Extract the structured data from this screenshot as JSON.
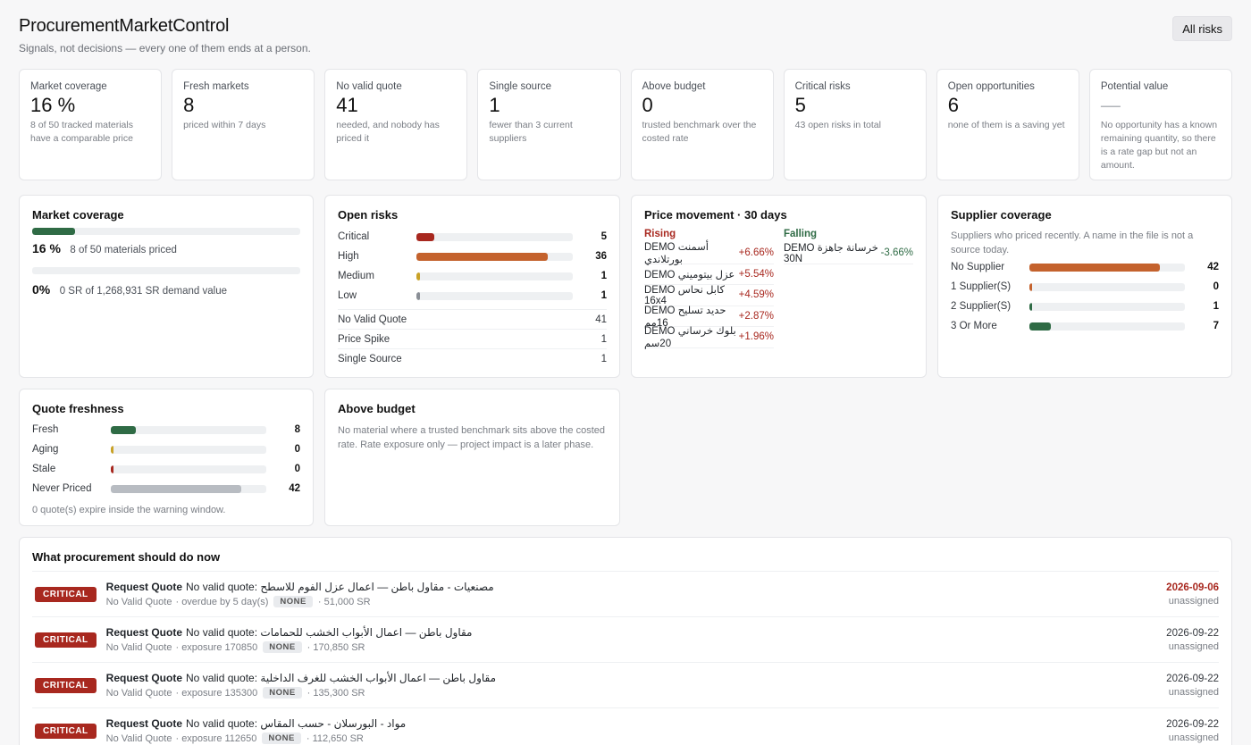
{
  "header": {
    "title": "ProcurementMarketControl",
    "subtitle": "Signals, not decisions — every one of them ends at a person.",
    "all_risks_label": "All risks"
  },
  "kpis": [
    {
      "label": "Market coverage",
      "value": "16 %",
      "sub": "8 of 50 tracked materials have a comparable price"
    },
    {
      "label": "Fresh markets",
      "value": "8",
      "sub": "priced within 7 days"
    },
    {
      "label": "No valid quote",
      "value": "41",
      "sub": "needed, and nobody has priced it"
    },
    {
      "label": "Single source",
      "value": "1",
      "sub": "fewer than 3 current suppliers"
    },
    {
      "label": "Above budget",
      "value": "0",
      "sub": "trusted benchmark over the costed rate"
    },
    {
      "label": "Critical risks",
      "value": "5",
      "sub": "43 open risks in total"
    },
    {
      "label": "Open opportunities",
      "value": "6",
      "sub": "none of them is a saving yet"
    },
    {
      "label": "Potential value",
      "value": "—",
      "sub": "No opportunity has a known remaining quantity, so there is a rate gap but not an amount."
    }
  ],
  "market_coverage": {
    "title": "Market coverage",
    "materials_pct_value": 0.16,
    "materials_pct": "16 %",
    "materials_sub": "8 of 50 materials priced",
    "demand_pct_value": 0.0,
    "demand_pct": "0%",
    "demand_sub": "0 SR of 1,268,931 SR demand value"
  },
  "open_risks": {
    "title": "Open risks",
    "severity": [
      {
        "label": "Critical",
        "value": 5,
        "display": "5",
        "color": "#a8281f"
      },
      {
        "label": "High",
        "value": 36,
        "display": "36",
        "color": "#c4622d"
      },
      {
        "label": "Medium",
        "value": 1,
        "display": "1",
        "color": "#c9a227"
      },
      {
        "label": "Low",
        "value": 1,
        "display": "1",
        "color": "#8a8f96"
      }
    ],
    "severity_max": 43,
    "types": [
      {
        "label": "No Valid Quote",
        "value": "41"
      },
      {
        "label": "Price Spike",
        "value": "1"
      },
      {
        "label": "Single Source",
        "value": "1"
      }
    ]
  },
  "price_movement": {
    "title": "Price movement · 30 days",
    "rising_label": "Rising",
    "falling_label": "Falling",
    "rising_color": "#a8281f",
    "falling_color": "#2f6b45",
    "rising": [
      {
        "name": "DEMO أسمنت بورتلاندي",
        "pct": "+6.66%"
      },
      {
        "name": "DEMO عزل بيتوميني",
        "pct": "+5.54%"
      },
      {
        "name": "DEMO كابل نحاس 16x4",
        "pct": "+4.59%"
      },
      {
        "name": "DEMO حديد تسليح 16مم",
        "pct": "+2.87%"
      },
      {
        "name": "DEMO بلوك خرساني 20سم",
        "pct": "+1.96%"
      }
    ],
    "falling": [
      {
        "name": "DEMO خرسانة جاهزة 30N",
        "pct": "-3.66%"
      }
    ]
  },
  "supplier_coverage": {
    "title": "Supplier coverage",
    "note": "Suppliers who priced recently. A name in the file is not a source today.",
    "rows": [
      {
        "label": "No Supplier",
        "value": 42,
        "display": "42",
        "color": "#c4622d"
      },
      {
        "label": "1 Supplier(S)",
        "value": 0,
        "display": "0",
        "color": "#c4622d"
      },
      {
        "label": "2 Supplier(S)",
        "value": 1,
        "display": "1",
        "color": "#2f6b45"
      },
      {
        "label": "3 Or More",
        "value": 7,
        "display": "7",
        "color": "#2f6b45"
      }
    ],
    "max": 50
  },
  "quote_freshness": {
    "title": "Quote freshness",
    "rows": [
      {
        "label": "Fresh",
        "value": 8,
        "display": "8",
        "color": "#2f6b45"
      },
      {
        "label": "Aging",
        "value": 0,
        "display": "0",
        "color": "#c9a227"
      },
      {
        "label": "Stale",
        "value": 0,
        "display": "0",
        "color": "#a8281f"
      },
      {
        "label": "Never Priced",
        "value": 42,
        "display": "42",
        "color": "#b8bcc2"
      }
    ],
    "max": 50,
    "note": "0 quote(s) expire inside the warning window."
  },
  "above_budget": {
    "title": "Above budget",
    "note": "No material where a trusted benchmark sits above the costed rate. Rate exposure only — project impact is a later phase."
  },
  "actions": {
    "title": "What procurement should do now",
    "items": [
      {
        "badge": "CRITICAL",
        "action": "Request Quote",
        "desc": "No valid quote: مصنعيات - مقاول باطن — اعمال عزل الفوم للاسطح",
        "type": "No Valid Quote",
        "detail": "· overdue by 5 day(s)",
        "chip": "NONE",
        "amount": "· 51,000 SR",
        "date": "2026-09-06",
        "overdue": true,
        "assignee": "unassigned"
      },
      {
        "badge": "CRITICAL",
        "action": "Request Quote",
        "desc": "No valid quote: مقاول باطن — اعمال الأبواب الخشب للحمامات",
        "type": "No Valid Quote",
        "detail": "· exposure 170850",
        "chip": "NONE",
        "amount": "· 170,850 SR",
        "date": "2026-09-22",
        "overdue": false,
        "assignee": "unassigned"
      },
      {
        "badge": "CRITICAL",
        "action": "Request Quote",
        "desc": "No valid quote: مقاول باطن — اعمال الأبواب الخشب للغرف الداخلية",
        "type": "No Valid Quote",
        "detail": "· exposure 135300",
        "chip": "NONE",
        "amount": "· 135,300 SR",
        "date": "2026-09-22",
        "overdue": false,
        "assignee": "unassigned"
      },
      {
        "badge": "CRITICAL",
        "action": "Request Quote",
        "desc": "No valid quote: مواد - البورسلان - حسب المقاس",
        "type": "No Valid Quote",
        "detail": "· exposure 112650",
        "chip": "NONE",
        "amount": "· 112,650 SR",
        "date": "2026-09-22",
        "overdue": false,
        "assignee": "unassigned"
      }
    ]
  },
  "colors": {
    "accent_green": "#2f6b45",
    "critical_red": "#a8281f",
    "high_orange": "#c4622d"
  }
}
